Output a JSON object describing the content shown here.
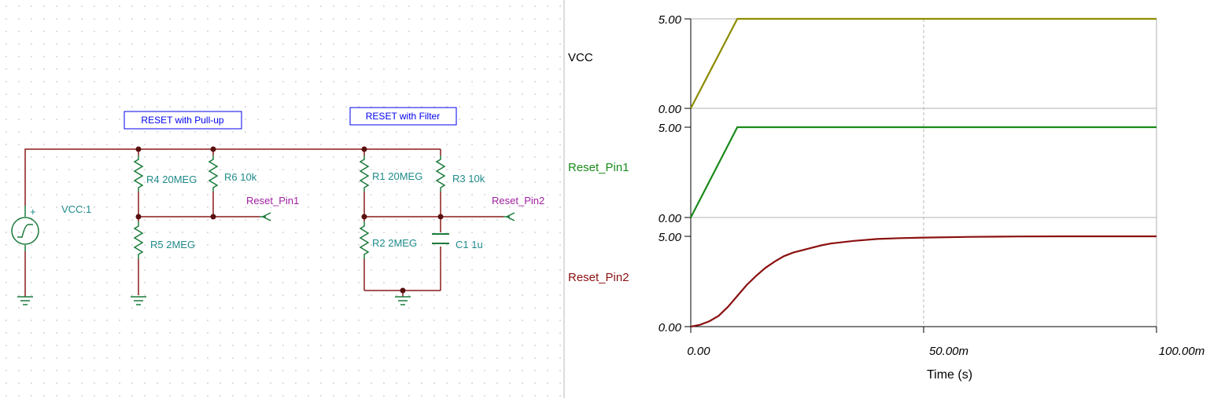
{
  "schematic": {
    "labels": {
      "pullup_box": "RESET with Pull-up",
      "filter_box": "RESET with Filter",
      "vcc_source": "VCC:1",
      "source_plus": "+",
      "r4": "R4 20MEG",
      "r6": "R6 10k",
      "r5": "R5 2MEG",
      "r1": "R1 20MEG",
      "r3": "R3 10k",
      "r2": "R2 2MEG",
      "c1": "C1 1u",
      "net_reset1": "Reset_Pin1",
      "net_reset2": "Reset_Pin2"
    },
    "colors": {
      "wire": "#8b1a1a",
      "component": "#1a7a3a",
      "label": "#1f8a8a",
      "net_label": "#a020a0",
      "box": "#0000ee"
    }
  },
  "chart_data": {
    "type": "line",
    "x_unit_label": "Time (s)",
    "xlim": [
      0,
      100
    ],
    "x_ticks": [
      "0.00",
      "50.00m",
      "100.00m"
    ],
    "panels": [
      {
        "name": "VCC",
        "color": "#8c8c00",
        "ylim": [
          0,
          5
        ],
        "y_ticks": [
          "0.00",
          "5.00"
        ],
        "x": [
          0,
          10,
          100
        ],
        "y": [
          0,
          5,
          5
        ]
      },
      {
        "name": "Reset_Pin1",
        "color": "#1a8a1a",
        "ylim": [
          0,
          5
        ],
        "y_ticks": [
          "0.00",
          "5.00"
        ],
        "x": [
          0,
          10,
          100
        ],
        "y": [
          0,
          5,
          5
        ]
      },
      {
        "name": "Reset_Pin2",
        "color": "#8b1010",
        "ylim": [
          0,
          5
        ],
        "y_ticks": [
          "0.00",
          "5.00"
        ],
        "x": [
          0,
          2,
          4,
          6,
          8,
          10,
          12,
          14,
          16,
          18,
          20,
          22,
          25,
          28,
          30,
          35,
          40,
          45,
          50,
          60,
          70,
          80,
          90,
          100
        ],
        "y": [
          0,
          0.1,
          0.3,
          0.6,
          1.1,
          1.7,
          2.3,
          2.8,
          3.25,
          3.6,
          3.9,
          4.1,
          4.3,
          4.5,
          4.6,
          4.75,
          4.85,
          4.9,
          4.93,
          4.97,
          4.99,
          5.0,
          5.0,
          5.0
        ]
      }
    ],
    "vertical_gridline_at": 50
  }
}
